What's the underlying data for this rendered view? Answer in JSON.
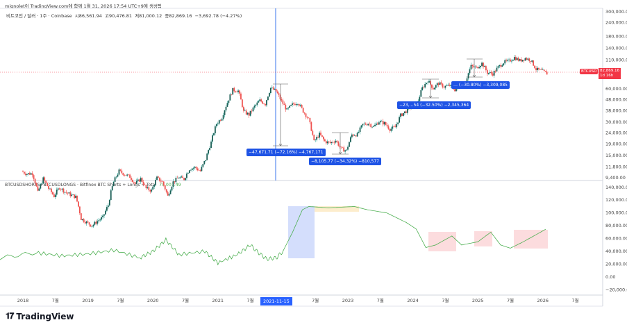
{
  "header": {
    "caption": "mignolet이 TradingView.com에 함께 1월 31, 2026 17:54 UTC+9에 생성됨"
  },
  "symbol_legend": {
    "symbol": "비트코인 / 달러 · 1주 · Coinbase",
    "open": "시86,561.94",
    "high": "고90,476.81",
    "low": "저81,000.12",
    "close": "종82,869.16",
    "change": "−3,692.78 (−4.27%)"
  },
  "indicator_legend": {
    "name": "BTCUSDSHORTS+BTCUSDLONGS · Bitfinex BTC Shorts + Longs + Total",
    "value": "75,001.49"
  },
  "price_tag": {
    "symbol": "BTCUSD",
    "price": "82,869.16",
    "countdown": "1d 16h"
  },
  "crosshair_date": "2021-11-15",
  "measurements": [
    {
      "text": "−47,671.71 (−72.16%) −4,767,171"
    },
    {
      "text": "−8,105.77 (−34.32%) −810,577"
    },
    {
      "text": "−23,…54 (−32.50%) −2,345,364"
    },
    {
      "text": "… (−30.80%) −3,309,085"
    }
  ],
  "logo": "TradingView",
  "colors": {
    "up": "#26a69a",
    "down": "#ef5350",
    "accent": "#2962ff",
    "line": "#4caf50"
  },
  "chart_data": [
    {
      "type": "candlestick",
      "title": "비트코인 / 달러 · 1주 · Coinbase",
      "scale": "log",
      "start": "2018-01",
      "monthly_close": [
        10200,
        10300,
        6900,
        9200,
        7500,
        6400,
        7700,
        7000,
        6600,
        6300,
        4000,
        3700,
        3450,
        3800,
        4100,
        5300,
        8600,
        10800,
        10100,
        9600,
        8300,
        9200,
        7500,
        7200,
        9350,
        8600,
        6400,
        8600,
        9450,
        9150,
        11300,
        11650,
        10800,
        13800,
        19700,
        28900,
        33100,
        45200,
        58800,
        57700,
        37300,
        35000,
        41500,
        47100,
        43800,
        61300,
        57000,
        46300,
        38500,
        43200,
        45500,
        37700,
        31800,
        19900,
        23300,
        20050,
        19400,
        20500,
        17200,
        16550,
        23100,
        23150,
        28500,
        29250,
        27200,
        30450,
        29250,
        25950,
        26950,
        34650,
        37700,
        42250,
        42600,
        61200,
        71300,
        60700,
        67500,
        62700,
        64600,
        59000,
        63300,
        70200,
        96400,
        93400,
        102400,
        84400,
        82500,
        94200,
        104600,
        107100,
        115800,
        108200,
        114000,
        109600,
        90400,
        87500,
        82870
      ],
      "yticks": [
        "300,000.00",
        "240,000.00",
        "180,000.00",
        "140,000.00",
        "110,000.00",
        "60,000.00",
        "48,000.00",
        "38,000.00",
        "30,000.00",
        "24,000.00",
        "19,000.00",
        "15,000.00",
        "11,800.00",
        "9,400.00"
      ],
      "ytick_values": [
        300000,
        240000,
        180000,
        140000,
        110000,
        60000,
        48000,
        38000,
        30000,
        24000,
        19000,
        15000,
        11800,
        9400
      ]
    },
    {
      "type": "line",
      "title": "BTCUSDSHORTS+BTCUSDLONGS",
      "points": [
        [
          2017.65,
          30000
        ],
        [
          2018.2,
          38000
        ],
        [
          2018.6,
          33000
        ],
        [
          2019.0,
          36000
        ],
        [
          2019.4,
          42000
        ],
        [
          2019.8,
          30000
        ],
        [
          2020.0,
          40000
        ],
        [
          2020.2,
          58000
        ],
        [
          2020.4,
          35000
        ],
        [
          2020.8,
          40000
        ],
        [
          2021.0,
          22000
        ],
        [
          2021.3,
          35000
        ],
        [
          2021.5,
          50000
        ],
        [
          2021.6,
          40000
        ],
        [
          2021.75,
          28000
        ],
        [
          2021.9,
          30000
        ],
        [
          2022.0,
          40000
        ],
        [
          2022.15,
          70000
        ],
        [
          2022.3,
          105000
        ],
        [
          2022.4,
          110000
        ],
        [
          2022.7,
          108000
        ],
        [
          2023.1,
          110000
        ],
        [
          2023.3,
          105000
        ],
        [
          2023.6,
          100000
        ],
        [
          2023.9,
          85000
        ],
        [
          2024.05,
          75000
        ],
        [
          2024.2,
          46000
        ],
        [
          2024.35,
          50000
        ],
        [
          2024.6,
          64000
        ],
        [
          2024.75,
          50000
        ],
        [
          2025.0,
          55000
        ],
        [
          2025.2,
          70000
        ],
        [
          2025.35,
          50000
        ],
        [
          2025.5,
          45000
        ],
        [
          2025.7,
          55000
        ],
        [
          2026.0,
          72000
        ],
        [
          2026.05,
          75000
        ]
      ],
      "yticks": [
        "140,000.00",
        "120,000.00",
        "100,000.00",
        "80,000.00",
        "60,000.00",
        "40,000.00",
        "20,000.00",
        "0.00",
        "−20,000.00"
      ],
      "ytick_values": [
        140000,
        120000,
        100000,
        80000,
        60000,
        40000,
        20000,
        0,
        -20000
      ]
    }
  ],
  "x_axis": {
    "labels": [
      "2018",
      "7월",
      "2019",
      "7월",
      "2020",
      "7월",
      "2021",
      "7월",
      "7월",
      "2023",
      "7월",
      "2024",
      "7월",
      "2025",
      "7월",
      "2026",
      "7월"
    ],
    "positions_years": [
      2018,
      2018.5,
      2019,
      2019.5,
      2020,
      2020.5,
      2021,
      2021.5,
      2022.5,
      2023,
      2023.5,
      2024,
      2024.5,
      2025,
      2025.5,
      2026,
      2026.5
    ]
  }
}
